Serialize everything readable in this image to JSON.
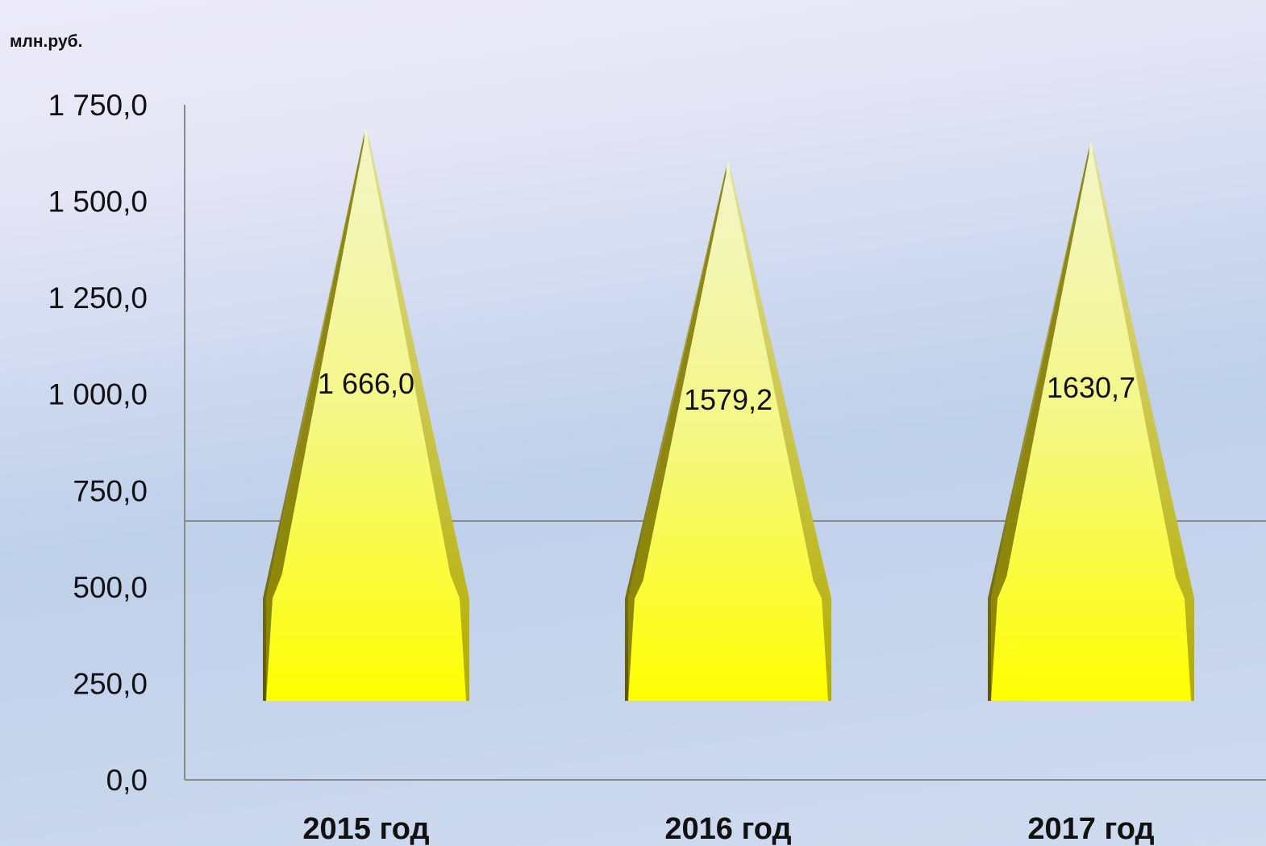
{
  "chart_data": {
    "type": "bar",
    "shape": "cone",
    "unit_label": "млн.руб.",
    "categories": [
      "2015 год",
      "2016 год",
      "2017 год"
    ],
    "values": [
      1666.0,
      1579.2,
      1630.7
    ],
    "data_labels": [
      "1 666,0",
      "1579,2",
      "1630,7"
    ],
    "y_ticks": [
      {
        "value": 0,
        "label": "0,0"
      },
      {
        "value": 250,
        "label": "250,0"
      },
      {
        "value": 500,
        "label": "500,0"
      },
      {
        "value": 750,
        "label": "750,0"
      },
      {
        "value": 1000,
        "label": "1 000,0"
      },
      {
        "value": 1250,
        "label": "1 250,0"
      },
      {
        "value": 1500,
        "label": "1 500,0"
      },
      {
        "value": 1750,
        "label": "1 750,0"
      }
    ],
    "ylim": [
      0,
      1750
    ],
    "grid": false,
    "colors": {
      "fill_top": "#f2f5c8",
      "fill_bottom": "#ffff00",
      "side_dark": "#6b6400",
      "side_light": "#bdb800",
      "axis": "#888888"
    }
  }
}
